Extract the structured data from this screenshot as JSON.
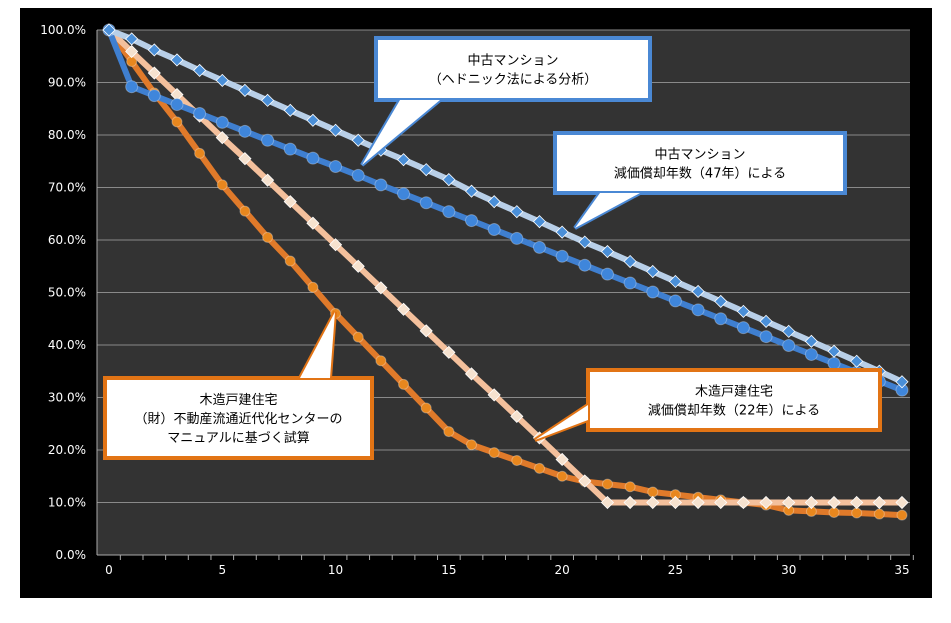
{
  "chart_data": {
    "type": "line",
    "title": "",
    "xlabel": "",
    "ylabel": "",
    "xlim": [
      0,
      35
    ],
    "ylim": [
      0,
      100
    ],
    "grid": true,
    "x_ticks": [
      "0",
      "5",
      "10",
      "15",
      "20",
      "25",
      "30",
      "35"
    ],
    "y_ticks": [
      "0.0%",
      "10.0%",
      "20.0%",
      "30.0%",
      "40.0%",
      "50.0%",
      "60.0%",
      "70.0%",
      "80.0%",
      "90.0%",
      "100.0%"
    ],
    "x": [
      0,
      1,
      2,
      3,
      4,
      5,
      6,
      7,
      8,
      9,
      10,
      11,
      12,
      13,
      14,
      15,
      16,
      17,
      18,
      19,
      20,
      21,
      22,
      23,
      24,
      25,
      26,
      27,
      28,
      29,
      30,
      31,
      32,
      33,
      34,
      35
    ],
    "series": [
      {
        "key": "mansion_hedonic",
        "color": "#b8cfe8",
        "marker": "diamond",
        "marker_color": "#4a8fd8",
        "values": [
          100,
          98.3,
          96.2,
          94.3,
          92.3,
          90.4,
          88.5,
          86.6,
          84.7,
          82.8,
          80.9,
          79.0,
          77.1,
          75.3,
          73.4,
          71.5,
          69.3,
          67.3,
          65.4,
          63.5,
          61.5,
          59.6,
          57.8,
          55.9,
          54.0,
          52.1,
          50.2,
          48.3,
          46.4,
          44.5,
          42.6,
          40.7,
          38.8,
          36.9,
          35.0,
          33.0
        ]
      },
      {
        "key": "mansion_47y",
        "color": "#3f7fd0",
        "marker": "circle",
        "marker_color": "#3f86db",
        "values": [
          100,
          89.2,
          87.5,
          85.8,
          84.1,
          82.4,
          80.7,
          79.0,
          77.3,
          75.6,
          74.0,
          72.3,
          70.5,
          68.8,
          67.1,
          65.4,
          63.7,
          62.0,
          60.3,
          58.6,
          56.9,
          55.2,
          53.5,
          51.8,
          50.1,
          48.4,
          46.7,
          45.0,
          43.3,
          41.6,
          39.9,
          38.2,
          36.5,
          34.8,
          33.1,
          31.4
        ]
      },
      {
        "key": "wood_22y",
        "color": "#f4c09c",
        "marker": "diamond",
        "marker_color": "#f6e2cf",
        "values": [
          100,
          95.9,
          91.8,
          87.7,
          83.6,
          79.5,
          75.5,
          71.4,
          67.3,
          63.2,
          59.1,
          55.0,
          50.9,
          46.8,
          42.7,
          38.6,
          34.5,
          30.5,
          26.4,
          22.3,
          18.2,
          14.1,
          10,
          10,
          10,
          10,
          10,
          10,
          10,
          10,
          10,
          10,
          10,
          10,
          10,
          10
        ]
      },
      {
        "key": "wood_center",
        "color": "#e07a2a",
        "marker": "circle",
        "marker_color": "#e8871e",
        "values": [
          100,
          94,
          88,
          82.5,
          76.5,
          70.5,
          65.5,
          60.5,
          56,
          51,
          46,
          41.5,
          37,
          32.5,
          28,
          23.5,
          21,
          19.5,
          18,
          16.5,
          15,
          14,
          13.5,
          13,
          12,
          11.5,
          11,
          10.5,
          10,
          9.5,
          8.5,
          8.3,
          8.1,
          8,
          7.8,
          7.6
        ]
      }
    ],
    "annotations": [
      {
        "key": "mansion_hedonic",
        "lines": [
          "中古マンション",
          "（ヘドニック法による分析）"
        ],
        "border": "#4a88d4"
      },
      {
        "key": "mansion_47y",
        "lines": [
          "中古マンション",
          "減価償却年数（47年）による"
        ],
        "border": "#4a88d4"
      },
      {
        "key": "wood_center",
        "lines": [
          "木造戸建住宅",
          "（財）不動産流通近代化センターの",
          "マニュアルに基づく試算"
        ],
        "border": "#e27415"
      },
      {
        "key": "wood_22y",
        "lines": [
          "木造戸建住宅",
          "減価償却年数（22年）による"
        ],
        "border": "#e27415"
      }
    ]
  }
}
